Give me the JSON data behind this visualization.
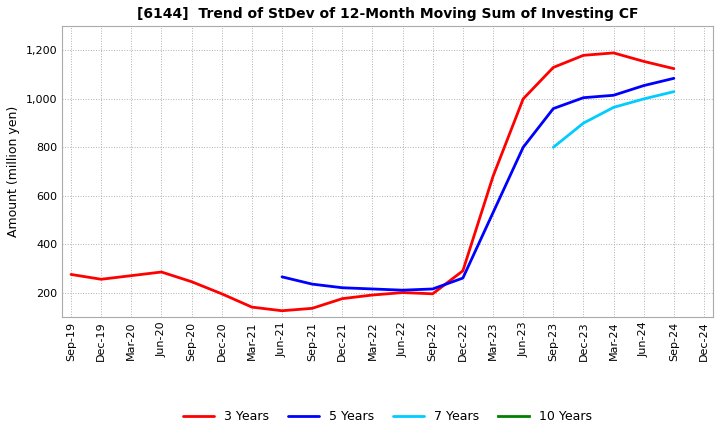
{
  "title": "[6144]  Trend of StDev of 12-Month Moving Sum of Investing CF",
  "ylabel": "Amount (million yen)",
  "background_color": "#ffffff",
  "grid_color": "#b0b0b0",
  "ylim": [
    100,
    1300
  ],
  "yticks": [
    200,
    400,
    600,
    800,
    1000,
    1200
  ],
  "ytick_labels": [
    "200",
    "400",
    "600",
    "800",
    "1,000",
    "1,200"
  ],
  "x_labels": [
    "Sep-19",
    "Dec-19",
    "Mar-20",
    "Jun-20",
    "Sep-20",
    "Dec-20",
    "Mar-21",
    "Jun-21",
    "Sep-21",
    "Dec-21",
    "Mar-22",
    "Jun-22",
    "Sep-22",
    "Dec-22",
    "Mar-23",
    "Jun-23",
    "Sep-23",
    "Dec-23",
    "Mar-24",
    "Jun-24",
    "Sep-24",
    "Dec-24"
  ],
  "series": [
    {
      "label": "3 Years",
      "color": "#ff0000",
      "linewidth": 2.0,
      "data_x": [
        0,
        1,
        2,
        3,
        4,
        5,
        6,
        7,
        8,
        9,
        10,
        11,
        12,
        13,
        14,
        15,
        16,
        17,
        18,
        19,
        20
      ],
      "data_y": [
        275,
        255,
        270,
        285,
        245,
        195,
        140,
        125,
        135,
        175,
        190,
        200,
        195,
        290,
        680,
        1000,
        1130,
        1180,
        1190,
        1155,
        1125
      ]
    },
    {
      "label": "5 Years",
      "color": "#0000ff",
      "linewidth": 2.0,
      "data_x": [
        7,
        8,
        9,
        10,
        11,
        12,
        13,
        14,
        15,
        16,
        17,
        18,
        19,
        20
      ],
      "data_y": [
        265,
        235,
        220,
        215,
        210,
        215,
        260,
        530,
        800,
        960,
        1005,
        1015,
        1055,
        1085
      ]
    },
    {
      "label": "7 Years",
      "color": "#00ccff",
      "linewidth": 2.0,
      "data_x": [
        16,
        17,
        18,
        19,
        20
      ],
      "data_y": [
        800,
        900,
        965,
        1000,
        1030
      ]
    },
    {
      "label": "10 Years",
      "color": "#008000",
      "linewidth": 2.0,
      "data_x": [],
      "data_y": []
    }
  ]
}
